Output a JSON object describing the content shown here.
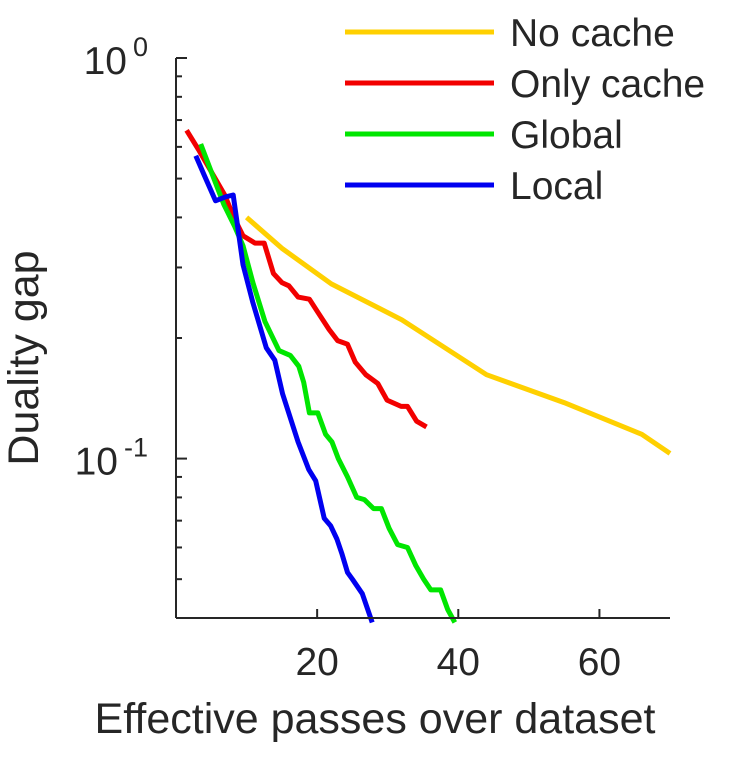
{
  "chart_data": {
    "type": "line",
    "xlabel": "Effective passes over dataset",
    "ylabel": "Duality gap",
    "x_scale": "linear",
    "y_scale": "log",
    "xlim": [
      0,
      70
    ],
    "ylim": [
      0.04,
      1.0
    ],
    "x_ticks": [
      20,
      40,
      60
    ],
    "x_tick_labels": [
      "20",
      "40",
      "60"
    ],
    "y_ticks": [
      1.0,
      0.1
    ],
    "y_tick_labels": [
      {
        "base": "10",
        "exp": "0"
      },
      {
        "base": "10",
        "exp": "-1"
      }
    ],
    "legend_position": "top-right",
    "grid": false,
    "series": [
      {
        "name": "No cache",
        "color": "#ffd000",
        "x": [
          10,
          15,
          22,
          32,
          44,
          55,
          66,
          70
        ],
        "y": [
          0.4,
          0.335,
          0.273,
          0.222,
          0.162,
          0.138,
          0.115,
          0.103
        ]
      },
      {
        "name": "Only cache",
        "color": "#f20000",
        "x": [
          1.5,
          3.2,
          5,
          6.9,
          8.2,
          9.5,
          11.2,
          12.5,
          13.8,
          15,
          16,
          17.3,
          18.9,
          20.1,
          21.7,
          22.9,
          24.3,
          25.4,
          26.9,
          28.6,
          29.9,
          31.9,
          32.8,
          34.1,
          35.5
        ],
        "y": [
          0.66,
          0.59,
          0.52,
          0.455,
          0.4,
          0.36,
          0.345,
          0.345,
          0.29,
          0.275,
          0.27,
          0.253,
          0.25,
          0.232,
          0.21,
          0.197,
          0.193,
          0.174,
          0.162,
          0.154,
          0.14,
          0.135,
          0.135,
          0.124,
          0.12
        ]
      },
      {
        "name": "Global",
        "color": "#00e600",
        "x": [
          3.5,
          5,
          6.8,
          8.3,
          9.5,
          10.9,
          12.6,
          14.6,
          16.2,
          17.4,
          18.1,
          18.9,
          20.1,
          21.2,
          22.1,
          23,
          24.3,
          25.6,
          26.7,
          28,
          29.1,
          30.2,
          31.4,
          32.8,
          34,
          35.1,
          36.1,
          37.5,
          38.5,
          39.5
        ],
        "y": [
          0.61,
          0.52,
          0.43,
          0.38,
          0.34,
          0.275,
          0.22,
          0.186,
          0.181,
          0.17,
          0.155,
          0.13,
          0.13,
          0.115,
          0.11,
          0.1,
          0.09,
          0.08,
          0.079,
          0.075,
          0.075,
          0.067,
          0.061,
          0.06,
          0.054,
          0.05,
          0.047,
          0.047,
          0.042,
          0.039
        ]
      },
      {
        "name": "Local",
        "color": "#0000f0",
        "x": [
          2.8,
          4,
          5.6,
          7,
          8.1,
          9.5,
          10.9,
          12.8,
          14,
          15.1,
          16.1,
          17.3,
          18.8,
          19.8,
          21,
          21.9,
          22.8,
          23.5,
          24.3,
          25,
          26.4,
          27.8
        ],
        "y": [
          0.57,
          0.51,
          0.44,
          0.45,
          0.455,
          0.305,
          0.245,
          0.189,
          0.176,
          0.145,
          0.128,
          0.11,
          0.094,
          0.088,
          0.071,
          0.068,
          0.063,
          0.058,
          0.052,
          0.05,
          0.046,
          0.039
        ]
      }
    ]
  }
}
